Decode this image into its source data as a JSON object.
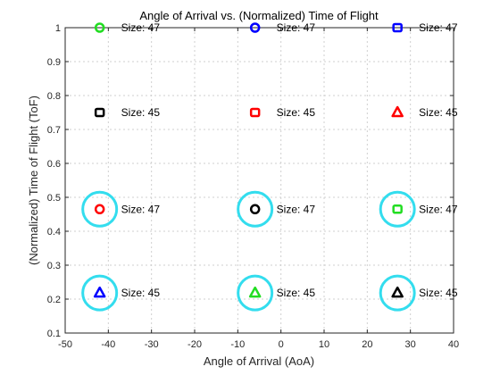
{
  "chart_data": {
    "type": "scatter",
    "title": "Angle of Arrival vs. (Normalized) Time of Flight",
    "xlabel": "Angle of Arrival (AoA)",
    "ylabel": "(Normalized) Time of Flight (ToF)",
    "xlim": [
      -50,
      40
    ],
    "ylim": [
      0.1,
      1
    ],
    "xticks": [
      "-50",
      "-40",
      "-30",
      "-20",
      "-10",
      "0",
      "10",
      "20",
      "30",
      "40"
    ],
    "yticks": [
      "0.1",
      "0.2",
      "0.3",
      "0.4",
      "0.5",
      "0.6",
      "0.7",
      "0.8",
      "0.9",
      "1"
    ],
    "grid": true,
    "points": [
      {
        "x": -42,
        "y": 1.0,
        "marker": "circle",
        "color": "#22dd22",
        "label": "Size: 47",
        "highlighted": false
      },
      {
        "x": -6,
        "y": 1.0,
        "marker": "circle",
        "color": "#0000ff",
        "label": "Size: 47",
        "highlighted": false
      },
      {
        "x": 27,
        "y": 1.0,
        "marker": "square",
        "color": "#0000ff",
        "label": "Size: 47",
        "highlighted": false
      },
      {
        "x": -42,
        "y": 0.75,
        "marker": "square",
        "color": "#000000",
        "label": "Size: 45",
        "highlighted": false
      },
      {
        "x": -6,
        "y": 0.75,
        "marker": "square",
        "color": "#ff0000",
        "label": "Size: 45",
        "highlighted": false
      },
      {
        "x": 27,
        "y": 0.75,
        "marker": "triangle",
        "color": "#ff0000",
        "label": "Size: 45",
        "highlighted": false
      },
      {
        "x": -42,
        "y": 0.465,
        "marker": "circle",
        "color": "#ff0000",
        "label": "Size: 47",
        "highlighted": true
      },
      {
        "x": -6,
        "y": 0.465,
        "marker": "circle",
        "color": "#000000",
        "label": "Size: 47",
        "highlighted": true
      },
      {
        "x": 27,
        "y": 0.465,
        "marker": "square",
        "color": "#22dd22",
        "label": "Size: 47",
        "highlighted": true
      },
      {
        "x": -42,
        "y": 0.218,
        "marker": "triangle",
        "color": "#0000ff",
        "label": "Size: 45",
        "highlighted": true
      },
      {
        "x": -6,
        "y": 0.218,
        "marker": "triangle",
        "color": "#22dd22",
        "label": "Size: 45",
        "highlighted": true
      },
      {
        "x": 27,
        "y": 0.218,
        "marker": "triangle",
        "color": "#000000",
        "label": "Size: 45",
        "highlighted": true
      }
    ],
    "highlight_color": "#33ddee"
  }
}
